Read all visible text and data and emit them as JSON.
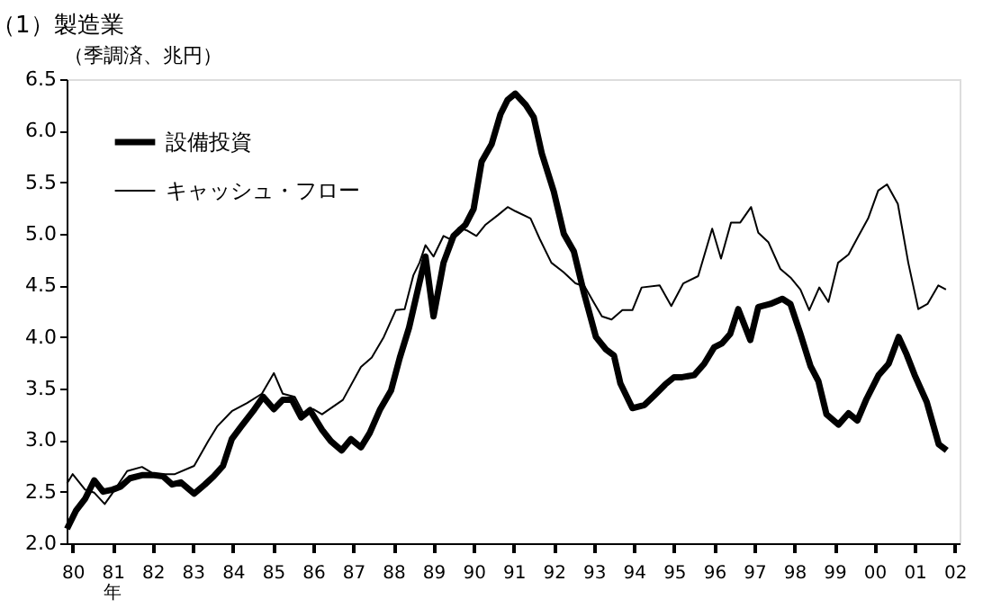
{
  "chart_data": {
    "type": "line",
    "title": "（1）製造業",
    "ylabel": "（季調済、兆円）",
    "xlabel": "年",
    "xlim": [
      1979.85,
      2002.12
    ],
    "ylim": [
      2.0,
      6.5
    ],
    "xticks": [
      {
        "value": 1980,
        "label": "80"
      },
      {
        "value": 1981,
        "label": "81"
      },
      {
        "value": 1982,
        "label": "82"
      },
      {
        "value": 1983,
        "label": "83"
      },
      {
        "value": 1984,
        "label": "84"
      },
      {
        "value": 1985,
        "label": "85"
      },
      {
        "value": 1986,
        "label": "86"
      },
      {
        "value": 1987,
        "label": "87"
      },
      {
        "value": 1988,
        "label": "88"
      },
      {
        "value": 1989,
        "label": "89"
      },
      {
        "value": 1990,
        "label": "90"
      },
      {
        "value": 1991,
        "label": "91"
      },
      {
        "value": 1992,
        "label": "92"
      },
      {
        "value": 1993,
        "label": "93"
      },
      {
        "value": 1994,
        "label": "94"
      },
      {
        "value": 1995,
        "label": "95"
      },
      {
        "value": 1996,
        "label": "96"
      },
      {
        "value": 1997,
        "label": "97"
      },
      {
        "value": 1998,
        "label": "98"
      },
      {
        "value": 1999,
        "label": "99"
      },
      {
        "value": 2000,
        "label": "00"
      },
      {
        "value": 2001,
        "label": "01"
      },
      {
        "value": 2002,
        "label": "02"
      }
    ],
    "yticks": [
      {
        "value": 2.0,
        "label": "2.0"
      },
      {
        "value": 2.5,
        "label": "2.5"
      },
      {
        "value": 3.0,
        "label": "3.0"
      },
      {
        "value": 3.5,
        "label": "3.5"
      },
      {
        "value": 4.0,
        "label": "4.0"
      },
      {
        "value": 4.5,
        "label": "4.5"
      },
      {
        "value": 5.0,
        "label": "5.0"
      },
      {
        "value": 5.5,
        "label": "5.5"
      },
      {
        "value": 6.0,
        "label": "6.0"
      },
      {
        "value": 6.5,
        "label": "6.5"
      }
    ],
    "grid": false,
    "legend": "top left",
    "marker": "none",
    "line_style": "solid",
    "series": [
      {
        "name": "設備投資",
        "color": "#000000",
        "x": [
          1979.86,
          1980.09,
          1980.31,
          1980.54,
          1980.76,
          1981.0,
          1981.2,
          1981.43,
          1981.73,
          1982.03,
          1982.25,
          1982.48,
          1982.7,
          1983.03,
          1983.3,
          1983.52,
          1983.75,
          1983.97,
          1984.2,
          1984.5,
          1984.75,
          1985.02,
          1985.24,
          1985.47,
          1985.7,
          1985.92,
          1986.22,
          1986.44,
          1986.71,
          1986.94,
          1987.19,
          1987.41,
          1987.67,
          1987.94,
          1988.16,
          1988.39,
          1988.8,
          1989.0,
          1989.25,
          1989.5,
          1989.8,
          1990.0,
          1990.2,
          1990.45,
          1990.67,
          1990.85,
          1991.04,
          1991.3,
          1991.5,
          1991.7,
          1992.0,
          1992.25,
          1992.5,
          1992.75,
          1993.05,
          1993.3,
          1993.5,
          1993.66,
          1993.96,
          1994.26,
          1994.5,
          1994.78,
          1995.0,
          1995.2,
          1995.5,
          1995.75,
          1996.0,
          1996.2,
          1996.4,
          1996.6,
          1996.9,
          1997.1,
          1997.4,
          1997.7,
          1997.9,
          1998.15,
          1998.4,
          1998.6,
          1998.8,
          1999.1,
          1999.35,
          1999.57,
          1999.8,
          2000.1,
          2000.35,
          2000.6,
          2000.8,
          2001.0,
          2001.3,
          2001.6,
          2001.8
        ],
        "values": [
          2.14,
          2.32,
          2.43,
          2.61,
          2.5,
          2.52,
          2.55,
          2.63,
          2.66,
          2.66,
          2.65,
          2.57,
          2.59,
          2.48,
          2.57,
          2.65,
          2.75,
          3.01,
          3.13,
          3.28,
          3.42,
          3.3,
          3.39,
          3.39,
          3.22,
          3.29,
          3.1,
          2.99,
          2.9,
          3.01,
          2.93,
          3.07,
          3.3,
          3.48,
          3.8,
          4.09,
          4.78,
          4.2,
          4.72,
          4.98,
          5.09,
          5.24,
          5.7,
          5.87,
          6.16,
          6.3,
          6.36,
          6.25,
          6.13,
          5.78,
          5.41,
          5.0,
          4.83,
          4.43,
          4.0,
          3.88,
          3.82,
          3.55,
          3.31,
          3.34,
          3.43,
          3.54,
          3.61,
          3.61,
          3.63,
          3.74,
          3.9,
          3.94,
          4.03,
          4.27,
          3.97,
          4.29,
          4.32,
          4.37,
          4.32,
          4.03,
          3.72,
          3.57,
          3.25,
          3.15,
          3.26,
          3.19,
          3.4,
          3.63,
          3.74,
          4.0,
          3.83,
          3.63,
          3.37,
          2.96,
          2.9
        ]
      },
      {
        "name": "キャッシュ・フロー",
        "color": "#000000",
        "x": [
          1979.86,
          1980.0,
          1980.31,
          1980.54,
          1980.8,
          1981.0,
          1981.36,
          1981.73,
          1982.03,
          1982.55,
          1983.03,
          1983.38,
          1983.6,
          1983.97,
          1984.35,
          1984.72,
          1985.02,
          1985.24,
          1985.54,
          1985.77,
          1986.0,
          1986.22,
          1986.74,
          1987.19,
          1987.46,
          1987.76,
          1988.06,
          1988.28,
          1988.5,
          1988.65,
          1988.8,
          1989.0,
          1989.25,
          1989.4,
          1989.63,
          1989.85,
          1990.07,
          1990.3,
          1990.6,
          1990.85,
          1991.04,
          1991.42,
          1991.65,
          1991.94,
          1992.24,
          1992.54,
          1992.77,
          1992.99,
          1993.2,
          1993.44,
          1993.71,
          1993.96,
          1994.19,
          1994.64,
          1994.93,
          1995.23,
          1995.6,
          1995.95,
          1996.17,
          1996.42,
          1996.65,
          1996.92,
          1997.1,
          1997.35,
          1997.65,
          1997.92,
          1998.15,
          1998.37,
          1998.62,
          1998.85,
          1999.09,
          1999.35,
          1999.6,
          1999.84,
          2000.09,
          2000.31,
          2000.58,
          2000.84,
          2001.09,
          2001.32,
          2001.59,
          2001.78
        ],
        "values": [
          2.58,
          2.67,
          2.52,
          2.49,
          2.38,
          2.49,
          2.7,
          2.74,
          2.67,
          2.67,
          2.75,
          2.99,
          3.13,
          3.28,
          3.36,
          3.45,
          3.65,
          3.45,
          3.42,
          3.25,
          3.3,
          3.25,
          3.39,
          3.71,
          3.8,
          4.0,
          4.26,
          4.27,
          4.6,
          4.72,
          4.89,
          4.78,
          4.98,
          4.95,
          5.06,
          5.03,
          4.98,
          5.09,
          5.18,
          5.26,
          5.22,
          5.15,
          4.95,
          4.72,
          4.63,
          4.52,
          4.49,
          4.34,
          4.2,
          4.17,
          4.26,
          4.26,
          4.48,
          4.5,
          4.3,
          4.52,
          4.59,
          5.05,
          4.76,
          5.11,
          5.11,
          5.26,
          5.01,
          4.92,
          4.66,
          4.57,
          4.46,
          4.26,
          4.48,
          4.34,
          4.72,
          4.8,
          4.98,
          5.15,
          5.42,
          5.48,
          5.29,
          4.72,
          4.27,
          4.32,
          4.5,
          4.46
        ]
      }
    ]
  }
}
